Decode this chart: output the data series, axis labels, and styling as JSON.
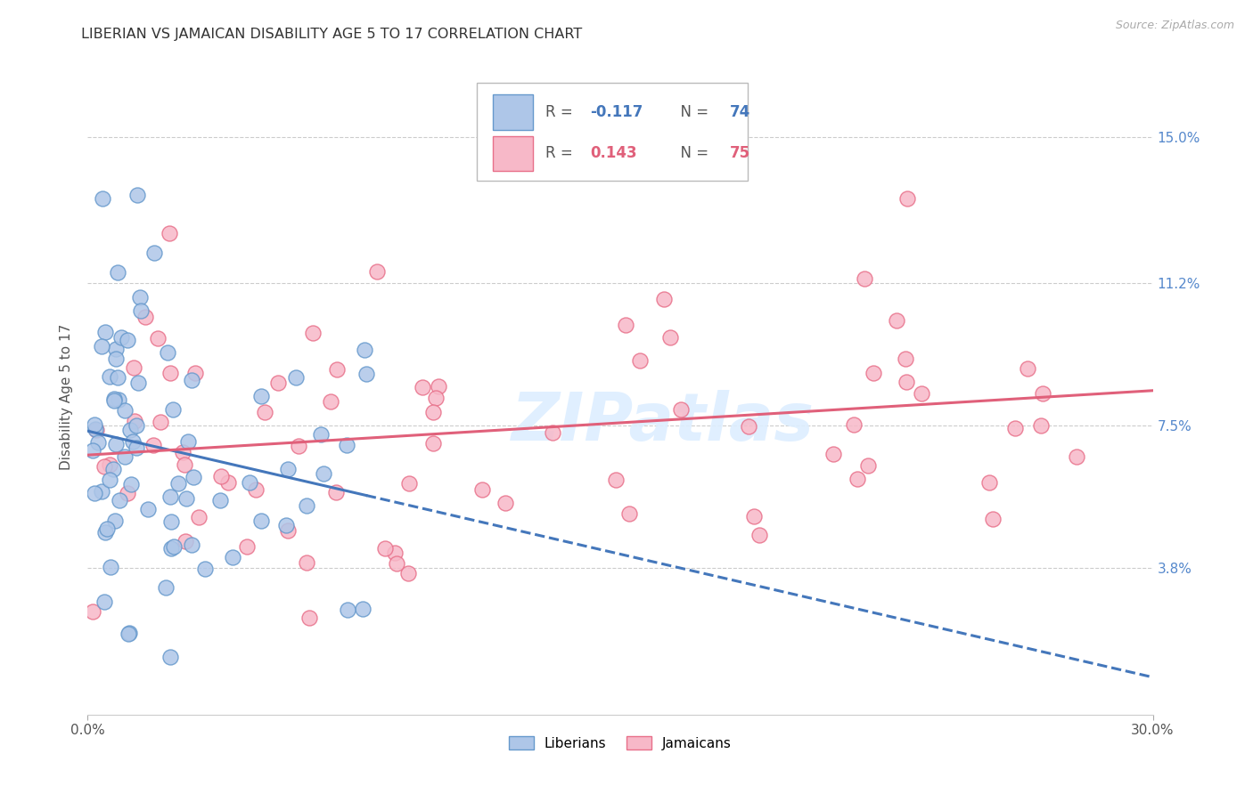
{
  "title": "LIBERIAN VS JAMAICAN DISABILITY AGE 5 TO 17 CORRELATION CHART",
  "source": "Source: ZipAtlas.com",
  "ylabel": "Disability Age 5 to 17",
  "yticks": [
    0.038,
    0.075,
    0.112,
    0.15
  ],
  "ytick_labels": [
    "3.8%",
    "7.5%",
    "11.2%",
    "15.0%"
  ],
  "xmin": 0.0,
  "xmax": 0.3,
  "ymin": 0.0,
  "ymax": 0.165,
  "liberian_R": -0.117,
  "liberian_N": 74,
  "jamaican_R": 0.143,
  "jamaican_N": 75,
  "liberian_fill": "#aec6e8",
  "jamaican_fill": "#f7b8c8",
  "liberian_edge": "#6699cc",
  "jamaican_edge": "#e8708a",
  "liberian_line": "#4477bb",
  "jamaican_line": "#e0607a",
  "watermark_color": "#ddeeff",
  "grid_color": "#cccccc",
  "title_color": "#333333",
  "label_color": "#555555",
  "tick_color": "#5588cc",
  "source_color": "#aaaaaa"
}
